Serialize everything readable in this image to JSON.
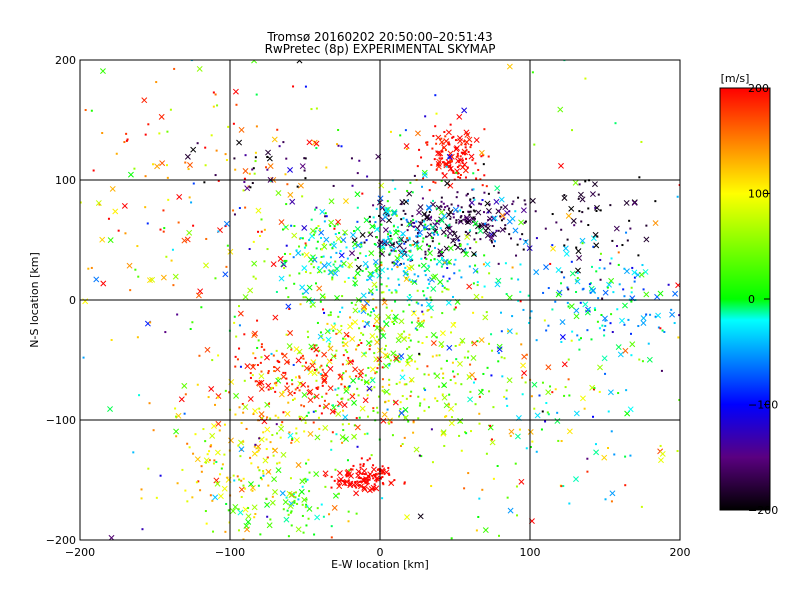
{
  "chart_data": {
    "type": "scatter",
    "title": "Tromsø 20160202 20:50:00–20:51:43",
    "subtitle": "RwPretec (8p) EXPERIMENTAL SKYMAP",
    "xlabel": "E-W location [km]",
    "ylabel": "N-S location [km]",
    "xlim": [
      -200,
      200
    ],
    "ylim": [
      -200,
      200
    ],
    "x_ticks": [
      -200,
      -100,
      0,
      100,
      200
    ],
    "y_ticks": [
      -200,
      -100,
      0,
      100,
      200
    ],
    "x_tick_labels": [
      "−200",
      "−100",
      "0",
      "100",
      "200"
    ],
    "y_tick_labels": [
      "−200",
      "−100",
      "0",
      "100",
      "200"
    ],
    "grid": true,
    "markers": [
      "x",
      "dot"
    ],
    "colorbar": {
      "label": "[m/s]",
      "range": [
        -200,
        200
      ],
      "ticks": [
        200,
        100,
        0,
        -100,
        -200
      ],
      "tick_labels": [
        "200",
        "100",
        "0",
        "−100",
        "−200"
      ],
      "colors": [
        "#000000",
        "#5a0080",
        "#0000ff",
        "#00ffff",
        "#00ff00",
        "#ffff00",
        "#ff8000",
        "#ff0000"
      ]
    },
    "clusters": [
      {
        "x": 50,
        "y": 120,
        "sx": 10,
        "sy": 12,
        "v": 195,
        "sv": 8,
        "n": 140
      },
      {
        "x": -10,
        "y": -148,
        "sx": 10,
        "sy": 6,
        "v": 200,
        "sv": 6,
        "n": 130
      },
      {
        "x": 55,
        "y": 70,
        "sx": 25,
        "sy": 10,
        "v": -175,
        "sv": 20,
        "n": 150
      },
      {
        "x": 30,
        "y": 50,
        "sx": 20,
        "sy": 12,
        "v": -180,
        "sv": 15,
        "n": 90
      },
      {
        "x": 15,
        "y": 40,
        "sx": 30,
        "sy": 25,
        "v": -20,
        "sv": 30,
        "n": 320
      },
      {
        "x": 0,
        "y": -50,
        "sx": 40,
        "sy": 35,
        "v": 60,
        "sv": 45,
        "n": 420
      },
      {
        "x": -50,
        "y": -60,
        "sx": 30,
        "sy": 20,
        "v": 190,
        "sv": 15,
        "n": 150
      },
      {
        "x": -90,
        "y": -130,
        "sx": 25,
        "sy": 30,
        "v": 110,
        "sv": 40,
        "n": 170
      },
      {
        "x": -60,
        "y": -170,
        "sx": 20,
        "sy": 15,
        "v": 20,
        "sv": 30,
        "n": 90
      },
      {
        "x": 150,
        "y": 0,
        "sx": 30,
        "sy": 20,
        "v": -40,
        "sv": 35,
        "n": 140
      },
      {
        "x": 140,
        "y": 60,
        "sx": 40,
        "sy": 20,
        "v": -180,
        "sv": 25,
        "n": 80
      },
      {
        "x": -130,
        "y": 100,
        "sx": 50,
        "sy": 40,
        "v": 150,
        "sv": 60,
        "n": 110
      },
      {
        "x": 100,
        "y": -110,
        "sx": 50,
        "sy": 50,
        "v": 60,
        "sv": 80,
        "n": 130
      },
      {
        "x": 0,
        "y": 0,
        "sx": 120,
        "sy": 110,
        "v": 40,
        "sv": 110,
        "n": 350
      },
      {
        "x": -70,
        "y": 110,
        "sx": 30,
        "sy": 15,
        "v": -170,
        "sv": 30,
        "n": 40
      },
      {
        "x": -40,
        "y": 40,
        "sx": 20,
        "sy": 20,
        "v": 20,
        "sv": 40,
        "n": 90
      }
    ]
  }
}
